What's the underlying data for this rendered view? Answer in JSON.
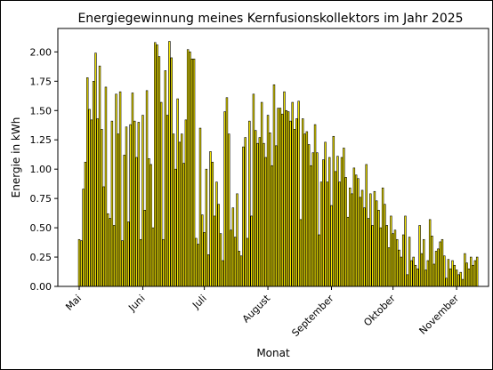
{
  "chart_data": {
    "type": "bar",
    "title": "Energiegewinnung meines Kernfusionskollektors im Jahr 2025",
    "xlabel": "Monat",
    "ylabel": "Energie in kWh",
    "ylim": [
      0,
      2.2
    ],
    "y_ticks": [
      "0.00",
      "0.25",
      "0.50",
      "0.75",
      "1.00",
      "1.25",
      "1.50",
      "1.75",
      "2.00"
    ],
    "x_ticks": [
      "Mai",
      "Juni",
      "Juli",
      "August",
      "September",
      "Oktober",
      "November"
    ],
    "x_tick_days": [
      0,
      31,
      61,
      92,
      123,
      153,
      184
    ],
    "start_date": "2025-05-01",
    "colors": {
      "bar_fill": "#f5e600",
      "bar_edge": "#000000",
      "frame": "#000000"
    },
    "values": [
      0.4,
      0.39,
      0.83,
      1.06,
      1.78,
      1.51,
      1.42,
      1.75,
      1.99,
      1.43,
      1.88,
      1.34,
      0.85,
      1.7,
      0.62,
      0.58,
      1.41,
      0.52,
      1.64,
      1.3,
      1.66,
      0.39,
      1.12,
      1.36,
      0.55,
      1.38,
      1.65,
      1.41,
      1.1,
      1.4,
      0.4,
      1.46,
      0.65,
      1.67,
      1.09,
      1.04,
      0.5,
      2.08,
      2.06,
      1.96,
      1.57,
      0.4,
      1.84,
      1.46,
      2.09,
      1.95,
      1.3,
      1.0,
      1.6,
      1.23,
      1.3,
      1.05,
      1.42,
      2.02,
      2.0,
      1.94,
      1.94,
      0.41,
      0.36,
      1.35,
      0.61,
      0.46,
      1.0,
      0.27,
      1.15,
      1.06,
      0.6,
      0.89,
      0.7,
      0.45,
      0.22,
      1.49,
      1.61,
      1.3,
      0.48,
      0.67,
      0.42,
      0.79,
      0.3,
      0.26,
      1.19,
      1.27,
      0.41,
      1.41,
      0.6,
      1.64,
      1.33,
      1.22,
      1.27,
      1.57,
      1.22,
      1.1,
      1.46,
      1.31,
      1.03,
      1.72,
      1.2,
      1.52,
      1.52,
      1.47,
      1.66,
      1.5,
      1.49,
      1.41,
      1.57,
      1.34,
      1.43,
      1.58,
      0.57,
      1.43,
      1.3,
      1.32,
      1.21,
      1.03,
      1.14,
      1.38,
      1.14,
      0.44,
      0.89,
      1.08,
      1.23,
      0.89,
      1.1,
      0.69,
      1.28,
      0.98,
      1.11,
      0.89,
      1.1,
      1.18,
      0.93,
      0.59,
      0.84,
      0.79,
      1.01,
      0.95,
      0.92,
      0.76,
      0.82,
      0.67,
      1.04,
      0.58,
      0.79,
      0.52,
      0.81,
      0.73,
      0.65,
      0.5,
      0.84,
      0.7,
      0.52,
      0.33,
      0.6,
      0.45,
      0.48,
      0.4,
      0.31,
      0.25,
      0.44,
      0.6,
      0.1,
      0.42,
      0.22,
      0.25,
      0.18,
      0.15,
      0.52,
      0.28,
      0.4,
      0.14,
      0.22,
      0.57,
      0.43,
      0.19,
      0.3,
      0.32,
      0.38,
      0.4,
      0.26,
      0.07,
      0.23,
      0.15,
      0.22,
      0.18,
      0.14,
      0.1,
      0.12,
      0.06,
      0.28,
      0.2,
      0.15,
      0.25,
      0.18,
      0.22,
      0.25
    ]
  }
}
